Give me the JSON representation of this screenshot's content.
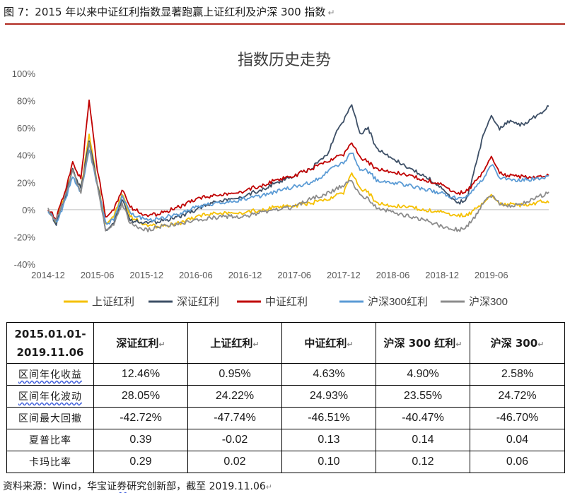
{
  "figure": {
    "title": "图 7：2015 年以来中证红利指数显著跑赢上证红利及沪深 300 指数",
    "source_prefix": "资料来源：Wind，华宝证",
    "source_wavy": "券",
    "source_suffix": "研究创新部，截至 2019.11.06"
  },
  "chart_data": {
    "type": "line",
    "title": "指数历史走势",
    "xlabel": "",
    "ylabel": "",
    "x_tick_labels": [
      "2014-12",
      "2015-06",
      "2015-12",
      "2016-06",
      "2016-12",
      "2017-06",
      "2017-12",
      "2018-06",
      "2018-12",
      "2019-06"
    ],
    "y_tick_labels": [
      "100%",
      "80%",
      "60%",
      "40%",
      "20%",
      "0%",
      "-20%",
      "-40%"
    ],
    "ylim": [
      -40,
      100
    ],
    "x_unit": "months since 2014-12",
    "legend_position": "bottom",
    "grid": false,
    "series": [
      {
        "name": "上证红利",
        "color": "#f5c000",
        "points": [
          [
            0,
            0
          ],
          [
            1,
            -8
          ],
          [
            2,
            10
          ],
          [
            3,
            30
          ],
          [
            4,
            15
          ],
          [
            5,
            55
          ],
          [
            6,
            20
          ],
          [
            7,
            -10
          ],
          [
            8,
            -5
          ],
          [
            9,
            12
          ],
          [
            10,
            -5
          ],
          [
            12,
            -12
          ],
          [
            14,
            -12
          ],
          [
            16,
            -10
          ],
          [
            18,
            -5
          ],
          [
            20,
            -3
          ],
          [
            22,
            -2
          ],
          [
            24,
            -2
          ],
          [
            26,
            0
          ],
          [
            28,
            2
          ],
          [
            30,
            3
          ],
          [
            32,
            5
          ],
          [
            34,
            7
          ],
          [
            35,
            10
          ],
          [
            36,
            12
          ],
          [
            37,
            28
          ],
          [
            38,
            15
          ],
          [
            39,
            13
          ],
          [
            40,
            5
          ],
          [
            42,
            3
          ],
          [
            44,
            2
          ],
          [
            46,
            0
          ],
          [
            48,
            -2
          ],
          [
            50,
            -4
          ],
          [
            51,
            -4
          ],
          [
            52,
            0
          ],
          [
            53,
            5
          ],
          [
            54,
            10
          ],
          [
            55,
            5
          ],
          [
            56,
            4
          ],
          [
            58,
            3
          ],
          [
            60,
            6
          ],
          [
            61,
            5
          ]
        ]
      },
      {
        "name": "深证红利",
        "color": "#3d4f66",
        "points": [
          [
            0,
            0
          ],
          [
            1,
            -10
          ],
          [
            2,
            8
          ],
          [
            3,
            30
          ],
          [
            4,
            15
          ],
          [
            5,
            50
          ],
          [
            6,
            20
          ],
          [
            7,
            -15
          ],
          [
            8,
            -10
          ],
          [
            9,
            8
          ],
          [
            10,
            -8
          ],
          [
            12,
            -10
          ],
          [
            14,
            -8
          ],
          [
            16,
            -5
          ],
          [
            18,
            0
          ],
          [
            20,
            5
          ],
          [
            22,
            8
          ],
          [
            24,
            10
          ],
          [
            26,
            15
          ],
          [
            28,
            20
          ],
          [
            30,
            25
          ],
          [
            32,
            30
          ],
          [
            34,
            40
          ],
          [
            35,
            55
          ],
          [
            36,
            65
          ],
          [
            37,
            78
          ],
          [
            38,
            55
          ],
          [
            39,
            60
          ],
          [
            40,
            45
          ],
          [
            42,
            38
          ],
          [
            44,
            30
          ],
          [
            46,
            25
          ],
          [
            48,
            15
          ],
          [
            50,
            5
          ],
          [
            51,
            8
          ],
          [
            52,
            30
          ],
          [
            53,
            55
          ],
          [
            54,
            68
          ],
          [
            55,
            60
          ],
          [
            56,
            65
          ],
          [
            57,
            63
          ],
          [
            58,
            62
          ],
          [
            59,
            68
          ],
          [
            60,
            70
          ],
          [
            61,
            76
          ]
        ]
      },
      {
        "name": "中证红利",
        "color": "#c00000",
        "points": [
          [
            0,
            0
          ],
          [
            1,
            -6
          ],
          [
            2,
            12
          ],
          [
            3,
            35
          ],
          [
            4,
            22
          ],
          [
            5,
            80
          ],
          [
            6,
            30
          ],
          [
            7,
            -5
          ],
          [
            8,
            0
          ],
          [
            9,
            15
          ],
          [
            10,
            2
          ],
          [
            12,
            -5
          ],
          [
            14,
            -2
          ],
          [
            16,
            2
          ],
          [
            18,
            8
          ],
          [
            20,
            10
          ],
          [
            22,
            12
          ],
          [
            24,
            14
          ],
          [
            26,
            18
          ],
          [
            28,
            22
          ],
          [
            30,
            25
          ],
          [
            32,
            30
          ],
          [
            34,
            35
          ],
          [
            35,
            38
          ],
          [
            36,
            40
          ],
          [
            37,
            50
          ],
          [
            38,
            38
          ],
          [
            39,
            35
          ],
          [
            40,
            30
          ],
          [
            42,
            28
          ],
          [
            44,
            25
          ],
          [
            46,
            22
          ],
          [
            48,
            18
          ],
          [
            50,
            12
          ],
          [
            51,
            14
          ],
          [
            52,
            20
          ],
          [
            53,
            28
          ],
          [
            54,
            38
          ],
          [
            55,
            28
          ],
          [
            56,
            25
          ],
          [
            58,
            24
          ],
          [
            60,
            24
          ],
          [
            61,
            25
          ]
        ]
      },
      {
        "name": "沪深300红利",
        "color": "#5b9bd5",
        "points": [
          [
            0,
            0
          ],
          [
            1,
            -10
          ],
          [
            2,
            5
          ],
          [
            3,
            25
          ],
          [
            4,
            12
          ],
          [
            5,
            45
          ],
          [
            6,
            18
          ],
          [
            7,
            -10
          ],
          [
            8,
            -8
          ],
          [
            9,
            10
          ],
          [
            10,
            -3
          ],
          [
            12,
            -8
          ],
          [
            14,
            -6
          ],
          [
            16,
            -3
          ],
          [
            18,
            2
          ],
          [
            20,
            4
          ],
          [
            22,
            6
          ],
          [
            24,
            8
          ],
          [
            26,
            10
          ],
          [
            28,
            14
          ],
          [
            30,
            17
          ],
          [
            32,
            20
          ],
          [
            34,
            27
          ],
          [
            35,
            32
          ],
          [
            36,
            35
          ],
          [
            37,
            42
          ],
          [
            38,
            30
          ],
          [
            39,
            28
          ],
          [
            40,
            22
          ],
          [
            42,
            20
          ],
          [
            44,
            18
          ],
          [
            46,
            15
          ],
          [
            48,
            12
          ],
          [
            50,
            8
          ],
          [
            51,
            10
          ],
          [
            52,
            16
          ],
          [
            53,
            22
          ],
          [
            54,
            33
          ],
          [
            55,
            24
          ],
          [
            56,
            22
          ],
          [
            58,
            22
          ],
          [
            60,
            23
          ],
          [
            61,
            25
          ]
        ]
      },
      {
        "name": "沪深300",
        "color": "#8c8c8c",
        "points": [
          [
            0,
            0
          ],
          [
            1,
            -8
          ],
          [
            2,
            8
          ],
          [
            3,
            28
          ],
          [
            4,
            12
          ],
          [
            5,
            48
          ],
          [
            6,
            18
          ],
          [
            7,
            -15
          ],
          [
            8,
            -12
          ],
          [
            9,
            5
          ],
          [
            10,
            -10
          ],
          [
            12,
            -15
          ],
          [
            14,
            -12
          ],
          [
            16,
            -10
          ],
          [
            18,
            -8
          ],
          [
            20,
            -6
          ],
          [
            22,
            -5
          ],
          [
            24,
            -5
          ],
          [
            26,
            -2
          ],
          [
            28,
            0
          ],
          [
            30,
            2
          ],
          [
            32,
            8
          ],
          [
            34,
            12
          ],
          [
            35,
            15
          ],
          [
            36,
            18
          ],
          [
            37,
            22
          ],
          [
            38,
            10
          ],
          [
            39,
            8
          ],
          [
            40,
            2
          ],
          [
            42,
            -2
          ],
          [
            44,
            -5
          ],
          [
            46,
            -8
          ],
          [
            48,
            -12
          ],
          [
            50,
            -15
          ],
          [
            51,
            -12
          ],
          [
            52,
            -5
          ],
          [
            53,
            5
          ],
          [
            54,
            10
          ],
          [
            55,
            5
          ],
          [
            56,
            3
          ],
          [
            58,
            5
          ],
          [
            60,
            10
          ],
          [
            61,
            13
          ]
        ]
      }
    ]
  },
  "table": {
    "period_line1": "2015.01.01-",
    "period_line2": "2019.11.06",
    "headers": [
      "深证红利",
      "上证红利",
      "中证红利",
      "沪深 300 红利",
      "沪深 300"
    ],
    "rows": [
      {
        "label": "区间年化收益",
        "values": [
          "12.46%",
          "0.95%",
          "4.63%",
          "4.90%",
          "2.58%"
        ]
      },
      {
        "label": "区间年化波动",
        "values": [
          "28.05%",
          "24.22%",
          "24.93%",
          "23.55%",
          "24.72%"
        ]
      },
      {
        "label": "区间最大回撤",
        "values": [
          "-42.72%",
          "-47.74%",
          "-46.51%",
          "-40.47%",
          "-46.70%"
        ]
      },
      {
        "label": "夏普比率",
        "values": [
          "0.39",
          "-0.02",
          "0.13",
          "0.14",
          "0.04"
        ]
      },
      {
        "label": "卡玛比率",
        "values": [
          "0.29",
          "0.02",
          "0.10",
          "0.12",
          "0.06"
        ]
      }
    ]
  }
}
